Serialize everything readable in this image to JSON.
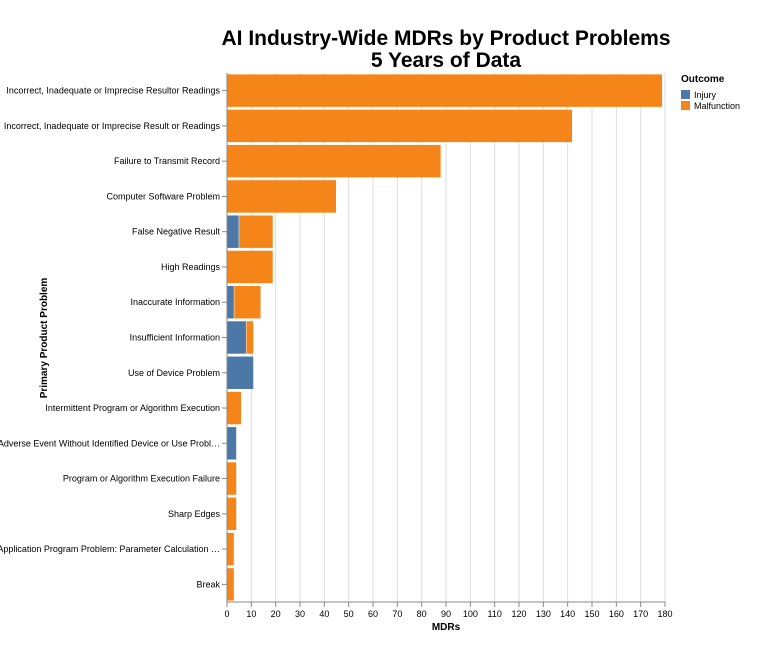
{
  "chart_data": {
    "type": "bar",
    "orientation": "horizontal",
    "stacked": true,
    "title": [
      "AI Industry-Wide MDRs by Product Problems",
      "5 Years of Data"
    ],
    "xlabel": "MDRs",
    "ylabel": "Primary Product Problem",
    "xlim": [
      0,
      180
    ],
    "xticks": [
      0,
      10,
      20,
      30,
      40,
      50,
      60,
      70,
      80,
      90,
      100,
      110,
      120,
      130,
      140,
      150,
      160,
      170,
      180
    ],
    "grid": true,
    "legend": {
      "title": "Outcome",
      "position": "top-right"
    },
    "categories": [
      "Incorrect, Inadequate or Imprecise Resultor Readings",
      "Incorrect, Inadequate or Imprecise Result or Readings",
      "Failure to Transmit Record",
      "Computer Software Problem",
      "False Negative Result",
      "High Readings",
      "Inaccurate Information",
      "Insufficient Information",
      "Use of Device Problem",
      "Intermittent Program or Algorithm Execution",
      "Adverse Event Without Identified Device or Use Probl…",
      "Program or Algorithm Execution Failure",
      "Sharp Edges",
      "Application Program Problem: Parameter Calculation …",
      "Break"
    ],
    "series": [
      {
        "name": "Injury",
        "color": "#4c78a8",
        "values": [
          0,
          0,
          0,
          0,
          5,
          0,
          3,
          8,
          11,
          0,
          4,
          0,
          0,
          0,
          0
        ]
      },
      {
        "name": "Malfunction",
        "color": "#f58518",
        "values": [
          179,
          142,
          88,
          45,
          14,
          19,
          11,
          3,
          0,
          6,
          0,
          4,
          4,
          3,
          3
        ]
      }
    ]
  }
}
